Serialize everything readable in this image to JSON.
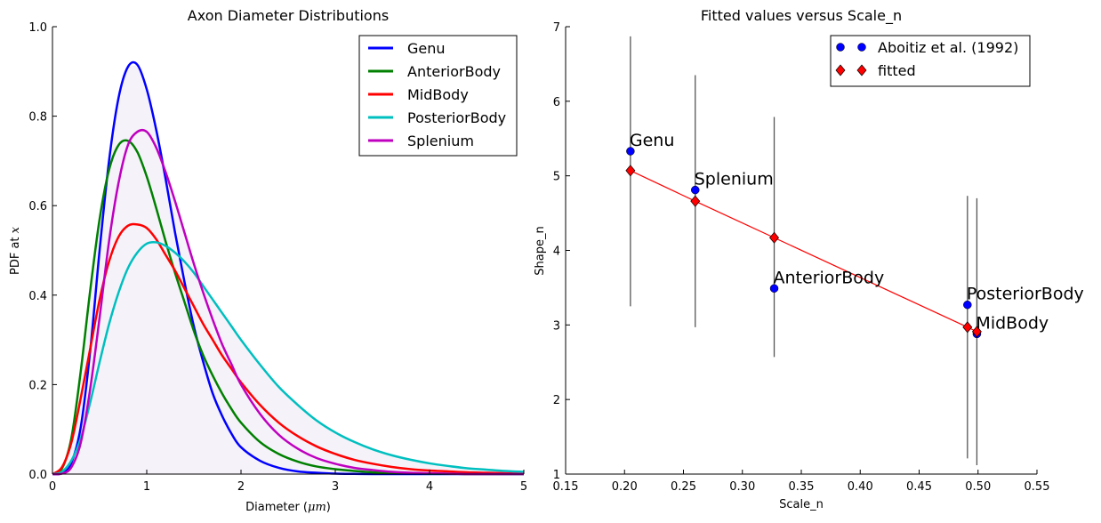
{
  "chart_data": [
    {
      "type": "line",
      "title": "Axon Diameter Distributions",
      "xlabel": "Diameter (",
      "xlabel_math": "μm",
      "xlabel_end": ")",
      "ylabel": "PDF at ",
      "ylabel_math": "x",
      "xlim": [
        0,
        5
      ],
      "ylim": [
        0,
        1.0
      ],
      "xticks": [
        "0",
        "1",
        "2",
        "3",
        "4",
        "5"
      ],
      "yticks": [
        "0.0",
        "0.2",
        "0.4",
        "0.6",
        "0.8",
        "1.0"
      ],
      "legend_position": "top-right",
      "x": [
        0.0,
        0.1,
        0.2,
        0.3,
        0.4,
        0.5,
        0.6,
        0.7,
        0.8,
        0.9,
        1.0,
        1.1,
        1.2,
        1.3,
        1.4,
        1.5,
        1.6,
        1.7,
        1.8,
        1.9,
        2.0,
        2.2,
        2.4,
        2.6,
        2.8,
        3.0,
        3.2,
        3.4,
        3.6,
        3.8,
        4.0,
        4.2,
        4.4,
        4.6,
        4.8,
        5.0
      ],
      "series": [
        {
          "name": "Genu",
          "color": "#0000ff",
          "values": [
            0.0,
            0.002,
            0.025,
            0.105,
            0.275,
            0.5,
            0.7,
            0.84,
            0.91,
            0.915,
            0.86,
            0.77,
            0.66,
            0.54,
            0.43,
            0.33,
            0.25,
            0.18,
            0.13,
            0.09,
            0.06,
            0.03,
            0.014,
            0.006,
            0.003,
            0.001,
            0.0005,
            0.0,
            0.0,
            0.0,
            0.0,
            0.0,
            0.0,
            0.0,
            0.0,
            0.0
          ]
        },
        {
          "name": "AnteriorBody",
          "color": "#008000",
          "values": [
            0.0,
            0.012,
            0.08,
            0.23,
            0.41,
            0.57,
            0.68,
            0.735,
            0.745,
            0.72,
            0.665,
            0.595,
            0.52,
            0.45,
            0.385,
            0.32,
            0.265,
            0.22,
            0.18,
            0.145,
            0.115,
            0.072,
            0.045,
            0.028,
            0.017,
            0.011,
            0.007,
            0.004,
            0.003,
            0.002,
            0.001,
            0.001,
            0.0,
            0.0,
            0.0,
            0.0
          ]
        },
        {
          "name": "MidBody",
          "color": "#ff0000",
          "values": [
            0.0,
            0.015,
            0.07,
            0.17,
            0.28,
            0.39,
            0.475,
            0.53,
            0.555,
            0.558,
            0.55,
            0.525,
            0.49,
            0.455,
            0.415,
            0.375,
            0.335,
            0.3,
            0.265,
            0.235,
            0.205,
            0.155,
            0.115,
            0.085,
            0.062,
            0.045,
            0.032,
            0.023,
            0.016,
            0.011,
            0.008,
            0.006,
            0.004,
            0.003,
            0.002,
            0.001
          ]
        },
        {
          "name": "PosteriorBody",
          "color": "#00bfbf",
          "values": [
            0.0,
            0.005,
            0.03,
            0.08,
            0.16,
            0.25,
            0.335,
            0.405,
            0.46,
            0.495,
            0.515,
            0.518,
            0.51,
            0.495,
            0.475,
            0.45,
            0.42,
            0.39,
            0.36,
            0.33,
            0.3,
            0.245,
            0.195,
            0.155,
            0.12,
            0.093,
            0.072,
            0.055,
            0.042,
            0.032,
            0.024,
            0.018,
            0.013,
            0.01,
            0.007,
            0.005
          ]
        },
        {
          "name": "Splenium",
          "color": "#bf00bf",
          "values": [
            0.0,
            0.001,
            0.015,
            0.07,
            0.19,
            0.35,
            0.52,
            0.65,
            0.735,
            0.765,
            0.765,
            0.73,
            0.675,
            0.61,
            0.54,
            0.47,
            0.405,
            0.345,
            0.29,
            0.245,
            0.2,
            0.135,
            0.088,
            0.057,
            0.036,
            0.023,
            0.014,
            0.009,
            0.005,
            0.003,
            0.002,
            0.001,
            0.0,
            0.0,
            0.0,
            0.0
          ]
        }
      ]
    },
    {
      "type": "scatter",
      "title": "Fitted values versus Scale_n",
      "xlabel": "Scale_n",
      "ylabel": "Shape_n",
      "xlim": [
        0.15,
        0.55
      ],
      "ylim": [
        1,
        7
      ],
      "xticks": [
        "0.15",
        "0.20",
        "0.25",
        "0.30",
        "0.35",
        "0.40",
        "0.45",
        "0.50",
        "0.55"
      ],
      "yticks": [
        "1",
        "2",
        "3",
        "4",
        "5",
        "6",
        "7"
      ],
      "legend_position": "top-right",
      "legend": [
        "Aboitiz et al. (1992)",
        "fitted"
      ],
      "points": [
        {
          "label": "Genu",
          "scale": 0.205,
          "shape": 5.33,
          "fitted": 5.07,
          "err_low": 3.25,
          "err_high": 6.87
        },
        {
          "label": "Splenium",
          "scale": 0.26,
          "shape": 4.81,
          "fitted": 4.66,
          "err_low": 2.97,
          "err_high": 6.35
        },
        {
          "label": "AnteriorBody",
          "scale": 0.327,
          "shape": 3.49,
          "fitted": 4.17,
          "err_low": 2.57,
          "err_high": 5.79
        },
        {
          "label": "PosteriorBody",
          "scale": 0.491,
          "shape": 3.27,
          "fitted": 2.97,
          "err_low": 1.21,
          "err_high": 4.73
        },
        {
          "label": "MidBody",
          "scale": 0.499,
          "shape": 2.88,
          "fitted": 2.91,
          "err_low": 1.12,
          "err_high": 4.7
        }
      ],
      "colors": {
        "observed": "#0000ff",
        "fitted": "#ff0000",
        "fit_line": "#ff0000",
        "errorbar": "#555555"
      }
    }
  ]
}
